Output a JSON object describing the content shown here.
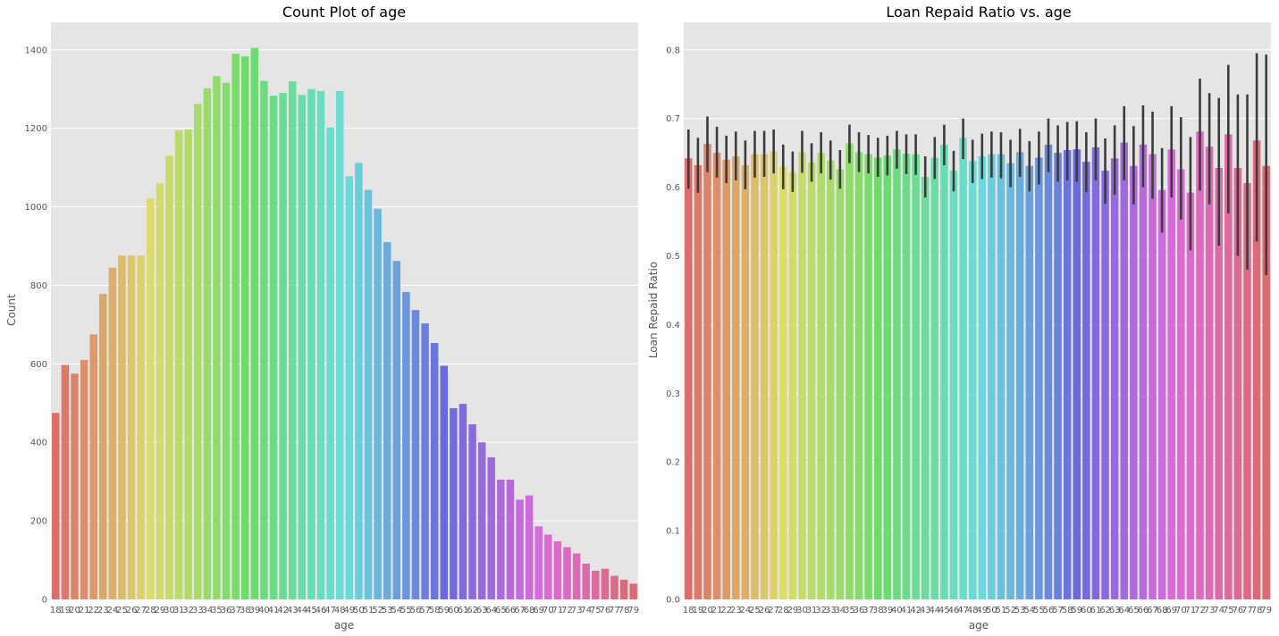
{
  "chart_data": [
    {
      "type": "bar",
      "title": "Count Plot of age",
      "xlabel": "age",
      "ylabel": "Count",
      "ylim": [
        0,
        1470
      ],
      "yticks": [
        0,
        200,
        400,
        600,
        800,
        1000,
        1200,
        1400
      ],
      "grid": true,
      "categories": [
        "18",
        "19",
        "20",
        "21",
        "22",
        "23",
        "24",
        "25",
        "26",
        "27",
        "28",
        "29",
        "30",
        "31",
        "32",
        "33",
        "34",
        "35",
        "36",
        "37",
        "38",
        "39",
        "40",
        "41",
        "42",
        "43",
        "44",
        "45",
        "46",
        "47",
        "48",
        "49",
        "50",
        "51",
        "52",
        "53",
        "54",
        "55",
        "56",
        "57",
        "58",
        "59",
        "60",
        "61",
        "62",
        "63",
        "64",
        "65",
        "66",
        "67",
        "68",
        "69",
        "70",
        "71",
        "72",
        "73",
        "74",
        "75",
        "76",
        "77",
        "78",
        "79"
      ],
      "values": [
        475,
        597,
        575,
        610,
        675,
        778,
        845,
        876,
        876,
        876,
        1022,
        1060,
        1130,
        1195,
        1197,
        1262,
        1302,
        1333,
        1316,
        1390,
        1383,
        1405,
        1321,
        1283,
        1290,
        1320,
        1285,
        1300,
        1295,
        1202,
        1295,
        1078,
        1112,
        1043,
        995,
        910,
        862,
        783,
        737,
        703,
        653,
        595,
        487,
        498,
        446,
        400,
        362,
        305,
        305,
        254,
        265,
        186,
        165,
        148,
        133,
        117,
        91,
        73,
        78,
        60,
        50,
        40
      ]
    },
    {
      "type": "bar",
      "title": "Loan Repaid Ratio vs. age",
      "xlabel": "age",
      "ylabel": "Loan Repaid Ratio",
      "ylim": [
        0,
        0.84
      ],
      "yticks": [
        "0.0",
        "0.1",
        "0.2",
        "0.3",
        "0.4",
        "0.5",
        "0.6",
        "0.7",
        "0.8"
      ],
      "grid": true,
      "categories": [
        "18",
        "19",
        "20",
        "21",
        "22",
        "23",
        "24",
        "25",
        "26",
        "27",
        "28",
        "29",
        "30",
        "31",
        "32",
        "33",
        "34",
        "35",
        "36",
        "37",
        "38",
        "39",
        "40",
        "41",
        "42",
        "43",
        "44",
        "45",
        "46",
        "47",
        "48",
        "49",
        "50",
        "51",
        "52",
        "53",
        "54",
        "55",
        "56",
        "57",
        "58",
        "59",
        "60",
        "61",
        "62",
        "63",
        "64",
        "65",
        "66",
        "67",
        "68",
        "69",
        "70",
        "71",
        "72",
        "73",
        "74",
        "75",
        "76",
        "77",
        "78",
        "79"
      ],
      "values": [
        0.642,
        0.632,
        0.663,
        0.65,
        0.64,
        0.645,
        0.632,
        0.648,
        0.648,
        0.652,
        0.63,
        0.622,
        0.651,
        0.636,
        0.65,
        0.639,
        0.626,
        0.664,
        0.651,
        0.648,
        0.643,
        0.646,
        0.655,
        0.649,
        0.648,
        0.615,
        0.643,
        0.662,
        0.624,
        0.672,
        0.638,
        0.645,
        0.648,
        0.648,
        0.635,
        0.651,
        0.631,
        0.643,
        0.662,
        0.65,
        0.654,
        0.655,
        0.637,
        0.658,
        0.624,
        0.642,
        0.665,
        0.631,
        0.662,
        0.648,
        0.596,
        0.655,
        0.626,
        0.592,
        0.681,
        0.659,
        0.628,
        0.677,
        0.628,
        0.606,
        0.668,
        0.631
      ],
      "ci_low": [
        0.598,
        0.592,
        0.622,
        0.614,
        0.606,
        0.61,
        0.597,
        0.614,
        0.615,
        0.62,
        0.597,
        0.593,
        0.621,
        0.608,
        0.62,
        0.611,
        0.598,
        0.635,
        0.622,
        0.62,
        0.615,
        0.617,
        0.627,
        0.619,
        0.618,
        0.585,
        0.612,
        0.632,
        0.594,
        0.641,
        0.606,
        0.612,
        0.614,
        0.613,
        0.6,
        0.615,
        0.594,
        0.604,
        0.622,
        0.608,
        0.61,
        0.608,
        0.593,
        0.61,
        0.576,
        0.589,
        0.61,
        0.575,
        0.6,
        0.583,
        0.534,
        0.585,
        0.553,
        0.508,
        0.595,
        0.575,
        0.515,
        0.562,
        0.5,
        0.48,
        0.521,
        0.472
      ],
      "ci_high": [
        0.684,
        0.672,
        0.703,
        0.688,
        0.675,
        0.681,
        0.668,
        0.682,
        0.682,
        0.684,
        0.662,
        0.652,
        0.682,
        0.664,
        0.68,
        0.668,
        0.654,
        0.691,
        0.68,
        0.676,
        0.672,
        0.675,
        0.682,
        0.677,
        0.677,
        0.645,
        0.673,
        0.691,
        0.653,
        0.7,
        0.669,
        0.678,
        0.681,
        0.68,
        0.669,
        0.685,
        0.667,
        0.681,
        0.7,
        0.69,
        0.695,
        0.696,
        0.68,
        0.7,
        0.671,
        0.69,
        0.718,
        0.689,
        0.719,
        0.71,
        0.657,
        0.718,
        0.702,
        0.673,
        0.758,
        0.737,
        0.73,
        0.778,
        0.735,
        0.735,
        0.795,
        0.793
      ]
    }
  ]
}
